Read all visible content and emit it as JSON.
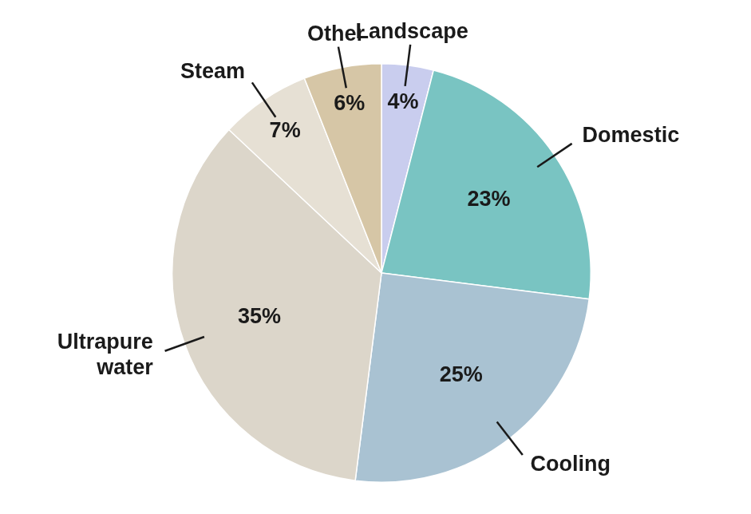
{
  "chart_data": {
    "type": "pie",
    "categories": [
      "Landscape",
      "Domestic",
      "Cooling",
      "Ultrapure water",
      "Steam",
      "Other"
    ],
    "values": [
      4,
      23,
      25,
      35,
      7,
      6
    ],
    "value_labels": [
      "4%",
      "23%",
      "25%",
      "35%",
      "7%",
      "6%"
    ],
    "colors": [
      "#c9cdee",
      "#79c4c2",
      "#a9c2d2",
      "#dcd6ca",
      "#e6e0d4",
      "#d6c6a6"
    ],
    "data_labels": true,
    "legend": false
  }
}
